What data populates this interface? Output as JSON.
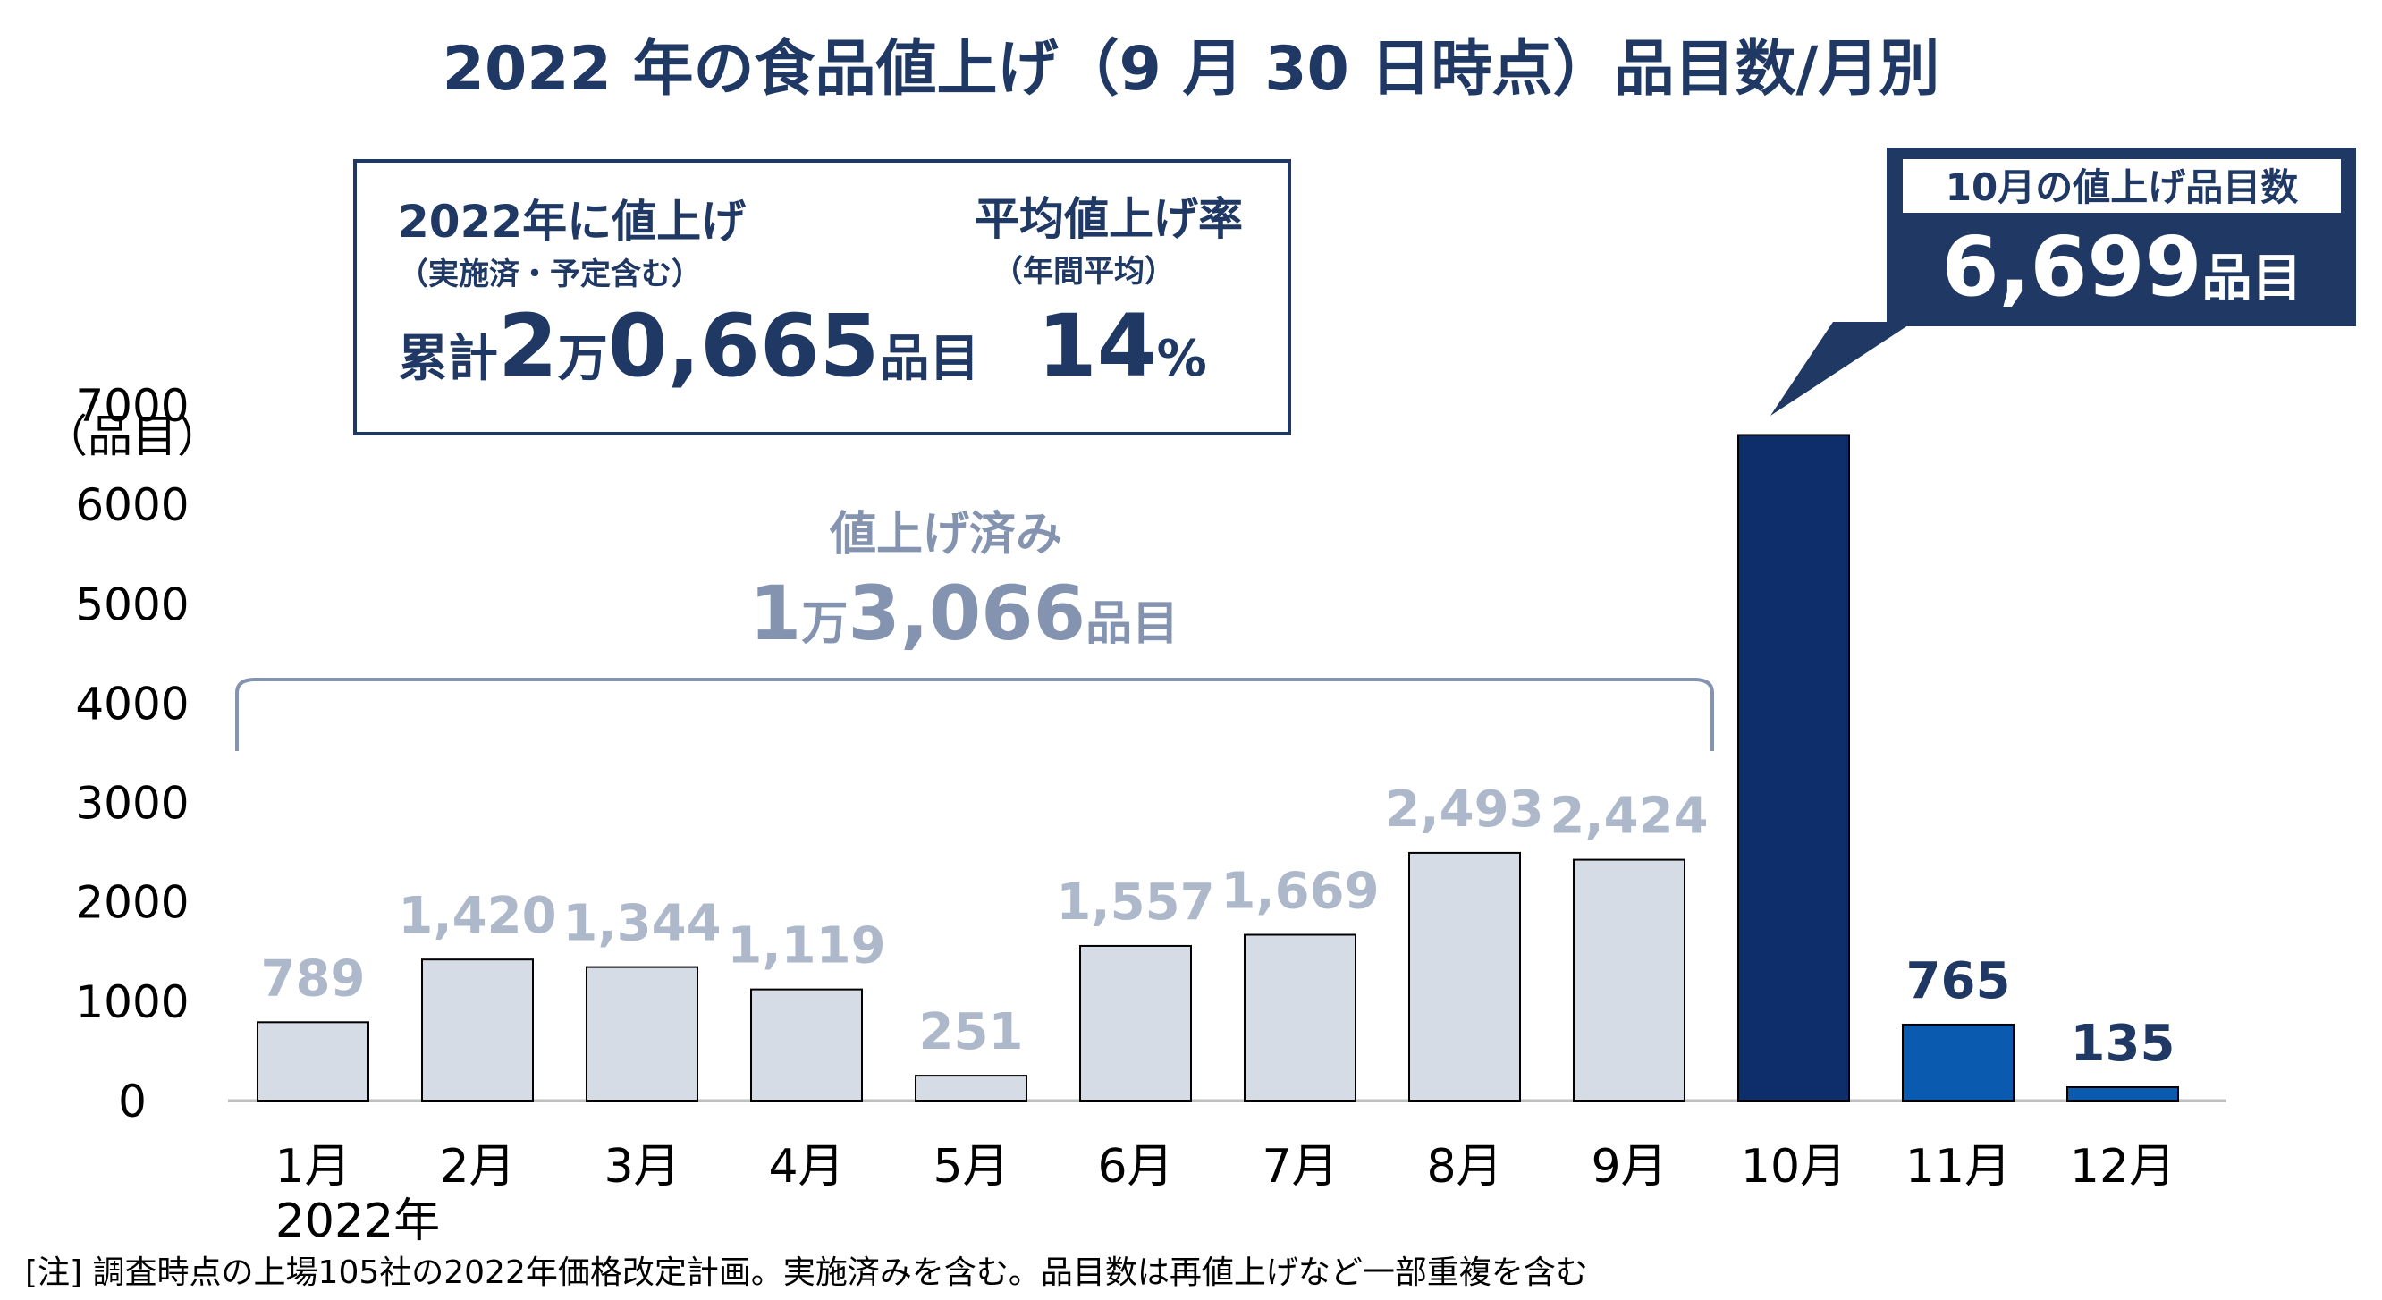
{
  "title": "2022 年の食品値上げ（9 月 30 日時点）品目数/月別",
  "summary_box": {
    "left_head": "2022年に値上げ",
    "left_sub": "（実施済・予定含む）",
    "left_prefix": "累計",
    "left_num1": "2",
    "left_unit1": "万",
    "left_num2": "0,665",
    "left_unit2": "品目",
    "right_head": "平均値上げ率",
    "right_sub": "（年間平均）",
    "right_num": "14",
    "right_unit": "%"
  },
  "callout": {
    "head": "10月の値上げ品目数",
    "num": "6,699",
    "unit": "品目"
  },
  "done_label": {
    "line1": "値上げ済み",
    "num1": "1",
    "unit1": "万",
    "num2": "3,066",
    "unit2": "品目"
  },
  "year_label": "2022年",
  "note": "[注]  調査時点の上場105社の2022年価格改定計画。実施済みを含む。品目数は再値上げなど一部重複を含む",
  "colors": {
    "title": "#1f3864",
    "past_bar": "#d6dce5",
    "past_label": "#adb9ca",
    "oct_bar": "#0d2d6b",
    "future_bar": "#0a5bb0",
    "future_label": "#1f3864"
  },
  "chart_data": {
    "type": "bar",
    "title": "2022 年の食品値上げ（9 月 30 日時点）品目数/月別",
    "xlabel": "",
    "ylabel": "（品目）",
    "ylim": [
      0,
      7000
    ],
    "yticks": [
      0,
      1000,
      2000,
      3000,
      4000,
      5000,
      6000,
      7000
    ],
    "categories": [
      "1月",
      "2月",
      "3月",
      "4月",
      "5月",
      "6月",
      "7月",
      "8月",
      "9月",
      "10月",
      "11月",
      "12月"
    ],
    "values": [
      789,
      1420,
      1344,
      1119,
      251,
      1557,
      1669,
      2493,
      2424,
      6699,
      765,
      135
    ],
    "value_labels": [
      "789",
      "1,420",
      "1,344",
      "1,119",
      "251",
      "1,557",
      "1,669",
      "2,493",
      "2,424",
      "",
      "765",
      "135"
    ],
    "grid": false,
    "legend": "none"
  }
}
